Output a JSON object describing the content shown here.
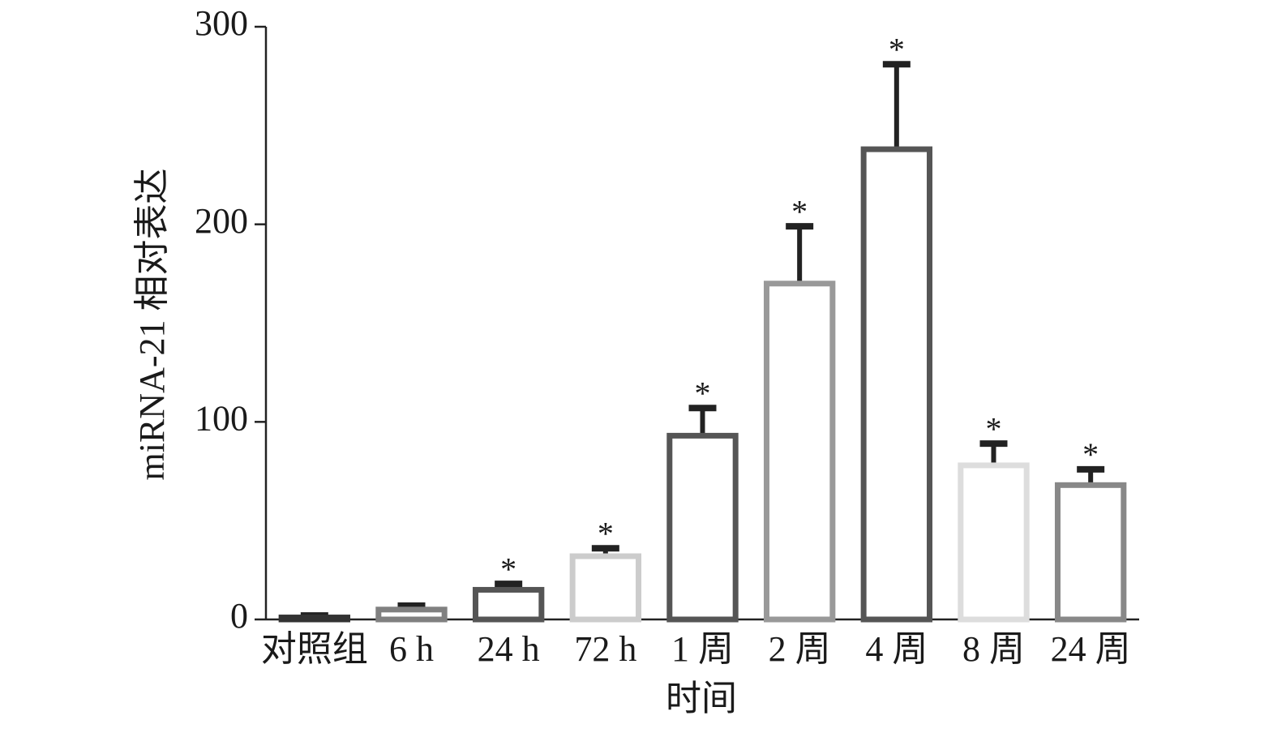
{
  "chart_data": {
    "type": "bar",
    "x_label": "时间",
    "y_label": "miRNA-21 相对表达",
    "categories": [
      "对照组",
      "6 h",
      "24 h",
      "72 h",
      "1 周",
      "2 周",
      "4 周",
      "8 周",
      "24 周"
    ],
    "values": [
      1,
      5,
      15,
      32,
      93,
      170,
      238,
      78,
      68
    ],
    "errors": [
      1,
      2,
      3,
      4,
      14,
      29,
      43,
      11,
      8
    ],
    "significance": [
      null,
      null,
      "*",
      "*",
      "*",
      "*",
      "*",
      "*",
      "*"
    ],
    "colors": [
      "#333333",
      "#808080",
      "#555555",
      "#cccccc",
      "#555555",
      "#999999",
      "#555555",
      "#dddddd",
      "#888888"
    ],
    "error_color": "#222222",
    "ylim": [
      0,
      300
    ],
    "yticks": [
      0,
      100,
      200,
      300
    ]
  }
}
